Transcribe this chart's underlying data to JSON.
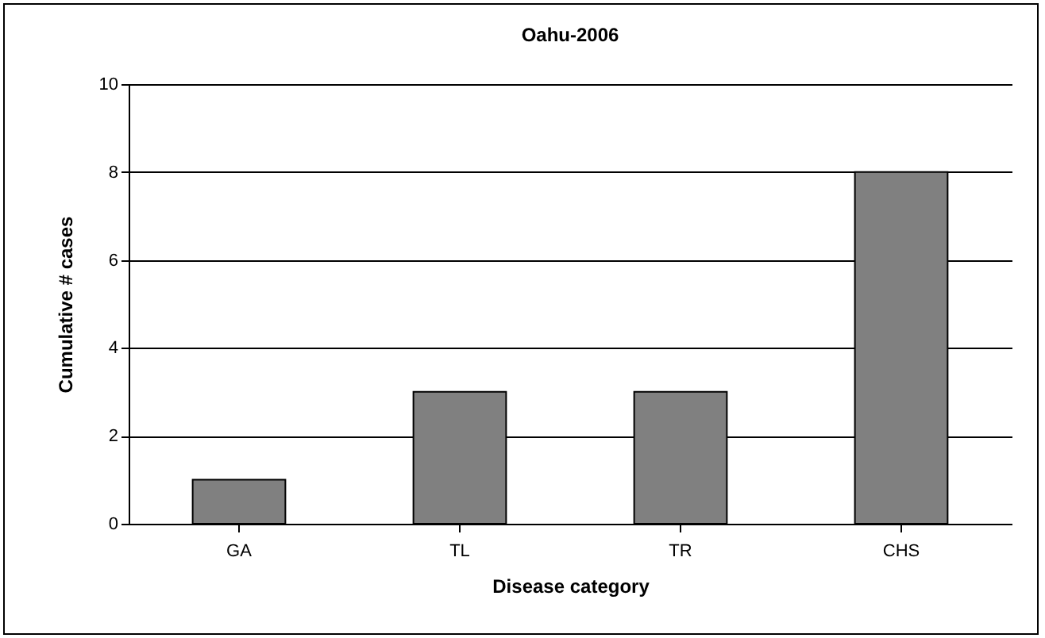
{
  "chart_data": {
    "type": "bar",
    "title": "Oahu-2006",
    "xlabel": "Disease category",
    "ylabel": "Cumulative # cases",
    "categories": [
      "GA",
      "TL",
      "TR",
      "CHS"
    ],
    "values": [
      1,
      3,
      3,
      8
    ],
    "color": "#808080",
    "ylim": [
      0,
      10
    ],
    "yticks": [
      0,
      2,
      4,
      6,
      8,
      10
    ],
    "grid": "y"
  }
}
